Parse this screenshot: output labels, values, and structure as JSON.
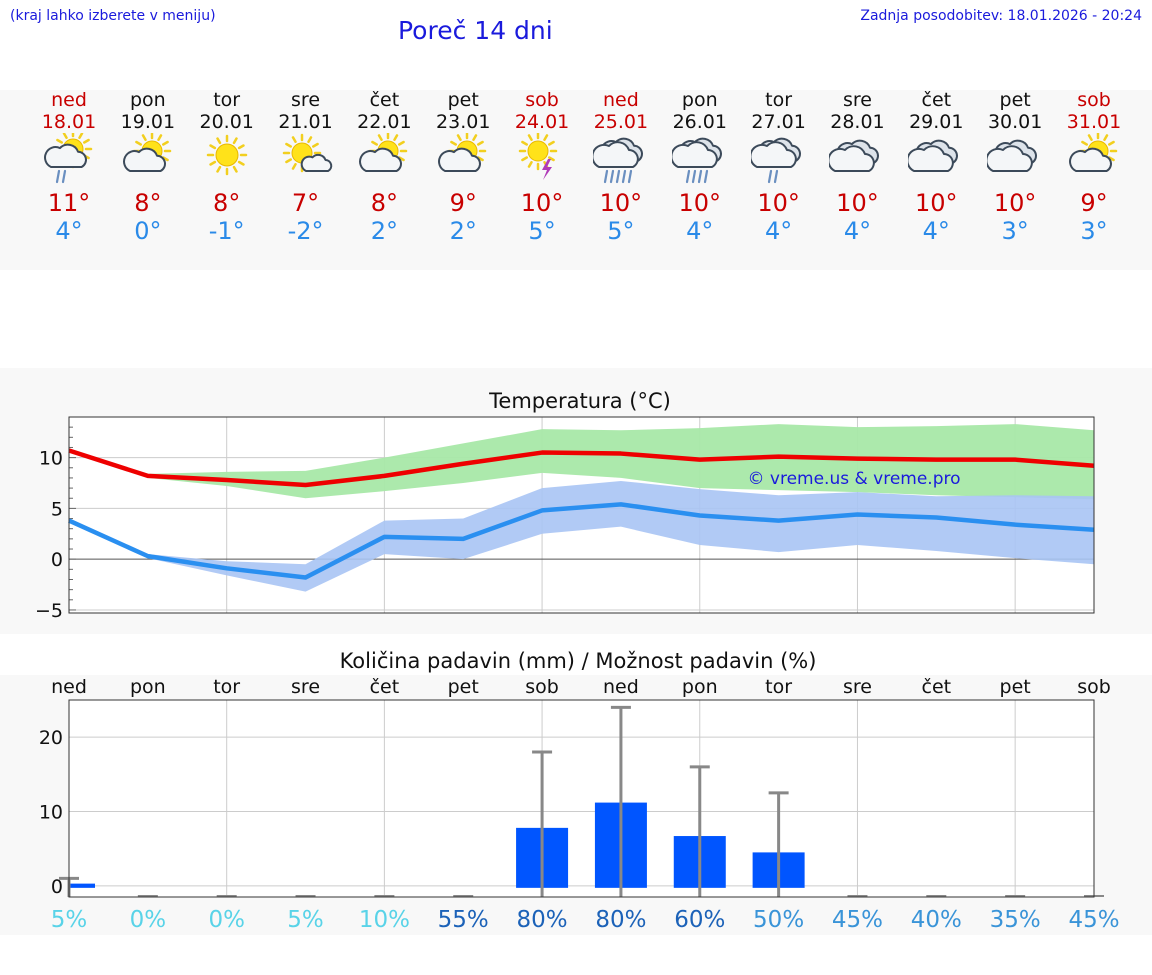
{
  "header": {
    "hint": "(kraj lahko izberete v meniju)",
    "title": "Poreč 14 dni",
    "updated": "Zadnja posodobitev: 18.01.2026 - 20:24"
  },
  "days": [
    {
      "wk": "ned",
      "date": "18.01",
      "tmax": "11°",
      "tmin": "4°",
      "icon": "sun-cloud-rain-icon",
      "weekend": true
    },
    {
      "wk": "pon",
      "date": "19.01",
      "tmax": "8°",
      "tmin": "0°",
      "icon": "sun-cloud-icon",
      "weekend": false
    },
    {
      "wk": "tor",
      "date": "20.01",
      "tmax": "8°",
      "tmin": "-1°",
      "icon": "sun-icon",
      "weekend": false
    },
    {
      "wk": "sre",
      "date": "21.01",
      "tmax": "7°",
      "tmin": "-2°",
      "icon": "sun-small-cloud-icon",
      "weekend": false
    },
    {
      "wk": "čet",
      "date": "22.01",
      "tmax": "8°",
      "tmin": "2°",
      "icon": "sun-cloud-icon",
      "weekend": false
    },
    {
      "wk": "pet",
      "date": "23.01",
      "tmax": "9°",
      "tmin": "2°",
      "icon": "sun-cloud-icon",
      "weekend": false
    },
    {
      "wk": "sob",
      "date": "24.01",
      "tmax": "10°",
      "tmin": "5°",
      "icon": "sun-thunder-icon",
      "weekend": true
    },
    {
      "wk": "ned",
      "date": "25.01",
      "tmax": "10°",
      "tmin": "5°",
      "icon": "cloud-heavy-rain-icon",
      "weekend": true
    },
    {
      "wk": "pon",
      "date": "26.01",
      "tmax": "10°",
      "tmin": "4°",
      "icon": "cloud-rain-icon",
      "weekend": false
    },
    {
      "wk": "tor",
      "date": "27.01",
      "tmax": "10°",
      "tmin": "4°",
      "icon": "cloud-light-rain-icon",
      "weekend": false
    },
    {
      "wk": "sre",
      "date": "28.01",
      "tmax": "10°",
      "tmin": "4°",
      "icon": "cloudy-icon",
      "weekend": false
    },
    {
      "wk": "čet",
      "date": "29.01",
      "tmax": "10°",
      "tmin": "4°",
      "icon": "cloudy-icon",
      "weekend": false
    },
    {
      "wk": "pet",
      "date": "30.01",
      "tmax": "10°",
      "tmin": "3°",
      "icon": "cloudy-icon",
      "weekend": false
    },
    {
      "wk": "sob",
      "date": "31.01",
      "tmax": "9°",
      "tmin": "3°",
      "icon": "sun-cloud-icon",
      "weekend": true
    }
  ],
  "chart_data": [
    {
      "type": "line",
      "title": "Temperatura (°C)",
      "x": [
        "18.01",
        "19.01",
        "20.01",
        "21.01",
        "22.01",
        "23.01",
        "24.01",
        "25.01",
        "26.01",
        "27.01",
        "28.01",
        "29.01",
        "30.01",
        "31.01"
      ],
      "ylim": [
        -5.3,
        14
      ],
      "yticks": [
        -5,
        0,
        5,
        10
      ],
      "ytick_labels": [
        "−5",
        "0",
        "5",
        "10"
      ],
      "watermark": "© vreme.us & vreme.pro",
      "series": [
        {
          "name": "max",
          "color": "#ee0000",
          "values": [
            10.7,
            8.2,
            7.8,
            7.3,
            8.2,
            9.4,
            10.5,
            10.4,
            9.8,
            10.1,
            9.9,
            9.8,
            9.8,
            9.2
          ]
        },
        {
          "name": "max range",
          "color": "#a8e8a8",
          "low": [
            10.5,
            8.0,
            7.2,
            6.0,
            6.7,
            7.5,
            8.5,
            8.0,
            7.0,
            6.8,
            6.6,
            6.3,
            6.1,
            5.9
          ],
          "high": [
            10.9,
            8.4,
            8.6,
            8.7,
            10.0,
            11.4,
            12.8,
            12.7,
            12.9,
            13.3,
            13.0,
            13.1,
            13.3,
            12.7
          ]
        },
        {
          "name": "min",
          "color": "#2a8ff0",
          "values": [
            3.8,
            0.3,
            -0.9,
            -1.8,
            2.2,
            2.0,
            4.8,
            5.4,
            4.3,
            3.8,
            4.4,
            4.1,
            3.4,
            2.9
          ]
        },
        {
          "name": "min range",
          "color": "#a8c4f4",
          "low": [
            3.6,
            0.1,
            -1.6,
            -3.2,
            0.5,
            0.0,
            2.5,
            3.2,
            1.4,
            0.7,
            1.4,
            0.8,
            0.1,
            -0.5
          ],
          "high": [
            4.0,
            0.5,
            -0.2,
            -0.5,
            3.8,
            4.0,
            7.0,
            7.7,
            6.9,
            6.3,
            6.6,
            6.2,
            6.3,
            6.2
          ]
        }
      ]
    },
    {
      "type": "bar",
      "title": "Količina padavin (mm) / Možnost padavin (%)",
      "categories": [
        "ned",
        "pon",
        "tor",
        "sre",
        "čet",
        "pet",
        "sob",
        "ned",
        "pon",
        "tor",
        "sre",
        "čet",
        "pet",
        "sob"
      ],
      "ylim": [
        -1.5,
        25
      ],
      "yticks": [
        0,
        10,
        20
      ],
      "values": [
        0.3,
        0,
        0,
        0,
        0,
        0,
        7.8,
        11.2,
        6.7,
        4.5,
        0,
        0,
        0,
        0
      ],
      "error_max": [
        1.0,
        0,
        0,
        0,
        0,
        0,
        18,
        24,
        16,
        12.5,
        0,
        0,
        0,
        0
      ],
      "probabilities": [
        "5%",
        "0%",
        "0%",
        "5%",
        "10%",
        "55%",
        "80%",
        "80%",
        "60%",
        "50%",
        "45%",
        "40%",
        "35%",
        "45%"
      ],
      "probability_colors": [
        "#59d3e8",
        "#59d3e8",
        "#59d3e8",
        "#59d3e8",
        "#59d3e8",
        "#1c62b8",
        "#1c62b8",
        "#1c62b8",
        "#1c62b8",
        "#3a94d8",
        "#3a94d8",
        "#3a94d8",
        "#3a94d8",
        "#3a94d8"
      ],
      "bar_color": "#0055ff",
      "error_color": "#888888"
    }
  ]
}
